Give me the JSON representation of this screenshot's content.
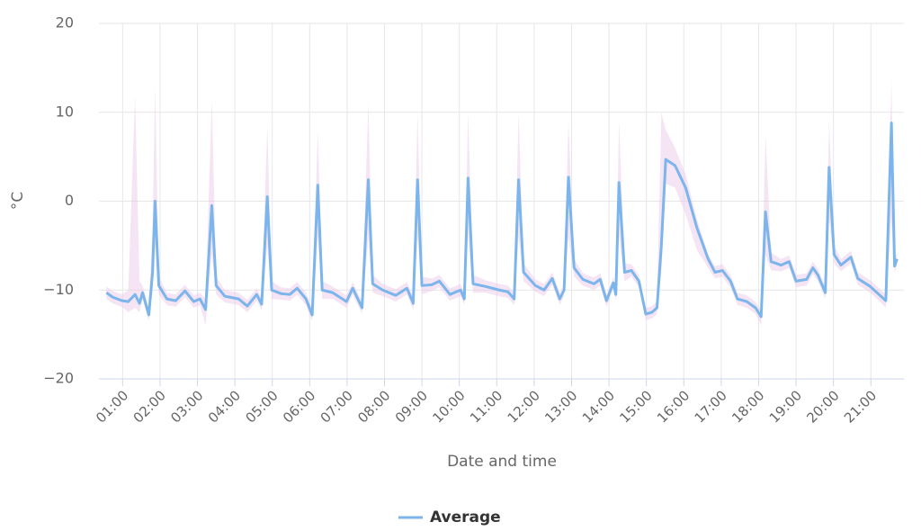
{
  "chart_data": {
    "type": "line",
    "y_label": "°C",
    "x_label": "Date and time",
    "xlim": [
      "00:22",
      "21:53"
    ],
    "xticks": [
      "01:00",
      "02:00",
      "03:00",
      "04:00",
      "05:00",
      "06:00",
      "07:00",
      "08:00",
      "09:00",
      "10:00",
      "11:00",
      "12:00",
      "13:00",
      "14:00",
      "15:00",
      "16:00",
      "17:00",
      "18:00",
      "19:00",
      "20:00",
      "21:00"
    ],
    "ylim": [
      -20,
      20
    ],
    "yticks": [
      {
        "value": -20,
        "label": "−20"
      },
      {
        "value": -10,
        "label": "−10"
      },
      0,
      10,
      20
    ],
    "grid": true,
    "legend": "bottom",
    "x": [
      "00:34",
      "00:44",
      "00:59",
      "01:09",
      "01:20",
      "01:27",
      "01:32",
      "01:42",
      "01:48",
      "01:52",
      "01:58",
      "02:11",
      "02:25",
      "02:40",
      "02:54",
      "03:04",
      "03:13",
      "03:23",
      "03:30",
      "03:44",
      "04:06",
      "04:20",
      "04:35",
      "04:43",
      "04:52",
      "04:59",
      "05:14",
      "05:28",
      "05:40",
      "05:54",
      "06:04",
      "06:13",
      "06:20",
      "06:37",
      "06:59",
      "07:09",
      "07:24",
      "07:34",
      "07:41",
      "07:57",
      "08:18",
      "08:36",
      "08:46",
      "08:53",
      "09:00",
      "09:16",
      "09:28",
      "09:45",
      "10:02",
      "10:08",
      "10:14",
      "10:22",
      "10:42",
      "11:04",
      "11:18",
      "11:28",
      "11:35",
      "11:43",
      "12:02",
      "12:16",
      "12:29",
      "12:41",
      "12:48",
      "12:55",
      "13:04",
      "13:18",
      "13:36",
      "13:46",
      "13:56",
      "14:07",
      "14:11",
      "14:16",
      "14:25",
      "14:36",
      "14:48",
      "14:59",
      "15:09",
      "15:17",
      "15:24",
      "15:31",
      "15:46",
      "16:03",
      "16:21",
      "16:39",
      "16:50",
      "17:02",
      "17:15",
      "17:26",
      "17:41",
      "17:55",
      "18:04",
      "18:11",
      "18:20",
      "18:36",
      "18:49",
      "19:00",
      "19:17",
      "19:27",
      "19:35",
      "19:47",
      "19:53",
      "20:01",
      "20:12",
      "20:28",
      "20:39",
      "20:59",
      "21:13",
      "21:24",
      "21:33",
      "21:38",
      "21:42"
    ],
    "series": [
      {
        "name": "Average",
        "color": "#7cb5ec",
        "values": [
          -10.3,
          -10.8,
          -11.2,
          -11.3,
          -10.5,
          -11.5,
          -10.3,
          -12.8,
          -8,
          0,
          -9.5,
          -11,
          -11.2,
          -10.1,
          -11.3,
          -11,
          -12.2,
          -0.5,
          -9.5,
          -10.7,
          -11,
          -11.8,
          -10.5,
          -11.6,
          0.5,
          -10,
          -10.4,
          -10.5,
          -9.8,
          -11,
          -12.8,
          1.8,
          -10,
          -10.3,
          -11.3,
          -9.8,
          -12,
          2.4,
          -9.3,
          -10,
          -10.6,
          -9.8,
          -11.5,
          2.4,
          -9.5,
          -9.4,
          -9,
          -10.5,
          -10,
          -11,
          2.6,
          -9.3,
          -9.6,
          -10,
          -10.2,
          -11,
          2.4,
          -8,
          -9.5,
          -10,
          -8.7,
          -11,
          -10,
          2.7,
          -7.5,
          -8.8,
          -9.3,
          -8.8,
          -11.2,
          -9.2,
          -10.5,
          2.1,
          -8,
          -7.8,
          -9,
          -12.7,
          -12.5,
          -12,
          -5,
          4.7,
          4,
          1.5,
          -3,
          -6.5,
          -8,
          -7.8,
          -9,
          -11,
          -11.3,
          -12,
          -13,
          -1.2,
          -6.8,
          -7.2,
          -6.8,
          -9,
          -8.8,
          -7.5,
          -8.3,
          -10.3,
          3.8,
          -6,
          -7.2,
          -6.3,
          -8.7,
          -9.6,
          -10.5,
          -11.2,
          8.8,
          -7.3,
          -6.5
        ]
      }
    ],
    "band": {
      "color": "#e9c6e6",
      "low": [
        -11,
        -11.5,
        -11.9,
        -12.5,
        -12,
        -12.5,
        -11,
        -13.5,
        -10,
        -5,
        -10.5,
        -11.7,
        -11.9,
        -10.8,
        -12,
        -11.7,
        -14,
        -6,
        -10.5,
        -11.4,
        -11.7,
        -12.5,
        -11.2,
        -12.3,
        -5,
        -11,
        -11.1,
        -11.2,
        -10.5,
        -11.7,
        -13.5,
        -4,
        -11,
        -11,
        -12,
        -10.5,
        -12.7,
        -4,
        -10.3,
        -10.7,
        -11.3,
        -10.5,
        -12.2,
        -4,
        -10.5,
        -10.1,
        -9.7,
        -11.2,
        -10.7,
        -11.7,
        -4,
        -10.3,
        -10.3,
        -10.7,
        -10.9,
        -11.7,
        -4,
        -9,
        -10.2,
        -10.7,
        -9.4,
        -11.7,
        -10.7,
        -4,
        -8.5,
        -9.5,
        -10,
        -9.5,
        -11.9,
        -9.9,
        -11.2,
        -4,
        -9,
        -8.5,
        -9.7,
        -13.4,
        -13.2,
        -12.7,
        -8,
        2,
        1.5,
        -1.5,
        -5.5,
        -7.5,
        -8.7,
        -8.5,
        -9.7,
        -11.7,
        -12,
        -12.7,
        -14,
        -6,
        -7.8,
        -7.9,
        -7.5,
        -9.7,
        -9.5,
        -8.2,
        -9,
        -11,
        -2,
        -7,
        -7.9,
        -7,
        -9.4,
        -10.3,
        -11.2,
        -12,
        -2,
        -8,
        -7.2
      ],
      "high": [
        -9.6,
        -10.1,
        -10.5,
        -10,
        12,
        -9,
        -9.5,
        -12,
        -3,
        13,
        -8.5,
        -10.3,
        -10.5,
        -9.4,
        -10.6,
        -10.3,
        -11,
        11.5,
        -8.5,
        -10,
        -10.3,
        -11.1,
        -9.8,
        -10.9,
        8.5,
        -9,
        -9.7,
        -9.8,
        -9.1,
        -10.3,
        -12,
        8,
        -9,
        -9.6,
        -10.6,
        -9.1,
        -11.3,
        11,
        -8.3,
        -9.3,
        -9.9,
        -9.1,
        -10.8,
        10,
        -8.5,
        -8.7,
        -8.3,
        -9.8,
        -9.3,
        -10.3,
        10,
        -8.3,
        -8.9,
        -9.3,
        -9.5,
        -10.3,
        10,
        -7,
        -8.8,
        -9.3,
        -8,
        -10.3,
        -9.3,
        9,
        -6.5,
        -8.1,
        -8.6,
        -8.1,
        -10.5,
        -8.5,
        -9.8,
        9,
        -7,
        -7.1,
        -8.3,
        -12,
        -11.8,
        -11.3,
        10,
        8,
        6,
        3,
        -2,
        -6,
        -7.3,
        -7.1,
        -8.3,
        -10.3,
        -10.6,
        -11.3,
        -12.3,
        7.5,
        -5.8,
        -6.5,
        -6.1,
        -8.3,
        -8.1,
        -6.8,
        -7.6,
        -9.6,
        9,
        -5,
        -6.5,
        -5.6,
        -8,
        -8.9,
        -9.8,
        -10.5,
        13.5,
        -6.5,
        -5.8
      ]
    }
  }
}
